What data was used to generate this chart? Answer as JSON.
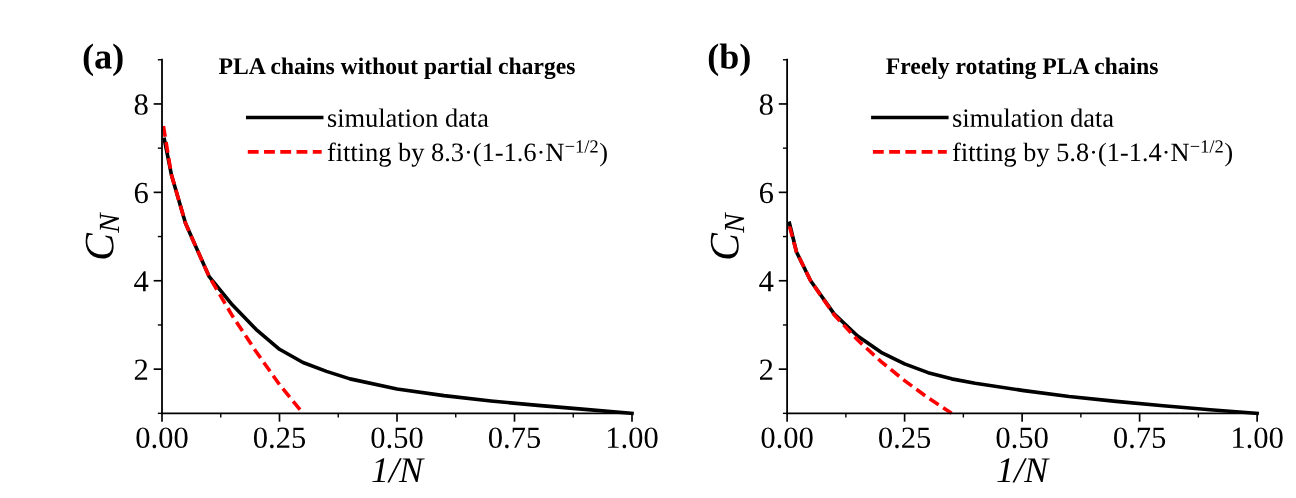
{
  "chart_data": [
    {
      "type": "line",
      "title": "PLA chains without partial charges",
      "annotations": [
        "(a)"
      ],
      "xlabel": "1/N",
      "ylabel": "C$_{N}$",
      "xlim": [
        0,
        1
      ],
      "ylim": [
        1,
        9
      ],
      "xticks": [
        {
          "value": 0,
          "label": "0.00"
        },
        {
          "value": 0.25,
          "label": "0.25"
        },
        {
          "value": 0.5,
          "label": "0.50"
        },
        {
          "value": 0.75,
          "label": "0.75"
        },
        {
          "value": 1,
          "label": "1.00"
        }
      ],
      "yticks": [
        {
          "value": 2,
          "label": "2"
        },
        {
          "value": 4,
          "label": "4"
        },
        {
          "value": 6,
          "label": "6"
        },
        {
          "value": 8,
          "label": "8"
        }
      ],
      "legend": "top right",
      "grid": false,
      "tick_labels": "xy",
      "series": [
        {
          "name": "simulation data",
          "color": "#000000",
          "line_style": "solid",
          "x": [
            0.005,
            0.02,
            0.05,
            0.1,
            0.15,
            0.2,
            0.25,
            0.3,
            0.35,
            0.4,
            0.5,
            0.6,
            0.7,
            0.8,
            0.9,
            1.0
          ],
          "values": [
            7.2,
            6.4,
            5.3,
            4.1,
            3.45,
            2.9,
            2.45,
            2.15,
            1.95,
            1.78,
            1.55,
            1.4,
            1.28,
            1.18,
            1.09,
            1.0
          ]
        },
        {
          "name": "fitting by 8.3·(1-1.6·N$^{−1/2}$)",
          "color": "#ff0000",
          "line_style": "dashed",
          "x": [
            0.003,
            0.02,
            0.05,
            0.1,
            0.15,
            0.2,
            0.25,
            0.3
          ],
          "values": [
            7.5,
            6.4,
            5.3,
            4.1,
            3.2,
            2.4,
            1.65,
            1.0
          ]
        }
      ]
    },
    {
      "type": "line",
      "title": "Freely rotating PLA chains",
      "annotations": [
        "(b)"
      ],
      "xlabel": "1/N",
      "ylabel": "C$_{N}$",
      "xlim": [
        0,
        1
      ],
      "ylim": [
        1,
        9
      ],
      "xticks": [
        {
          "value": 0,
          "label": "0.00"
        },
        {
          "value": 0.25,
          "label": "0.25"
        },
        {
          "value": 0.5,
          "label": "0.50"
        },
        {
          "value": 0.75,
          "label": "0.75"
        },
        {
          "value": 1,
          "label": "1.00"
        }
      ],
      "yticks": [
        {
          "value": 2,
          "label": "2"
        },
        {
          "value": 4,
          "label": "4"
        },
        {
          "value": 6,
          "label": "6"
        },
        {
          "value": 8,
          "label": "8"
        }
      ],
      "legend": "top right",
      "grid": false,
      "tick_labels": "xy",
      "series": [
        {
          "name": "simulation data",
          "color": "#000000",
          "line_style": "solid",
          "x": [
            0.005,
            0.02,
            0.05,
            0.1,
            0.15,
            0.2,
            0.25,
            0.3,
            0.35,
            0.4,
            0.5,
            0.6,
            0.7,
            0.8,
            0.9,
            1.0
          ],
          "values": [
            5.3,
            4.65,
            4.0,
            3.25,
            2.75,
            2.38,
            2.12,
            1.92,
            1.78,
            1.68,
            1.52,
            1.38,
            1.27,
            1.17,
            1.08,
            1.0
          ]
        },
        {
          "name": "fitting by 5.8·(1-1.4·N$^{−1/2}$)",
          "color": "#ff0000",
          "line_style": "dashed",
          "x": [
            0.005,
            0.02,
            0.05,
            0.1,
            0.15,
            0.2,
            0.25,
            0.3,
            0.35
          ],
          "values": [
            5.23,
            4.65,
            4.0,
            3.23,
            2.66,
            2.17,
            1.74,
            1.35,
            1.0
          ]
        }
      ]
    }
  ]
}
